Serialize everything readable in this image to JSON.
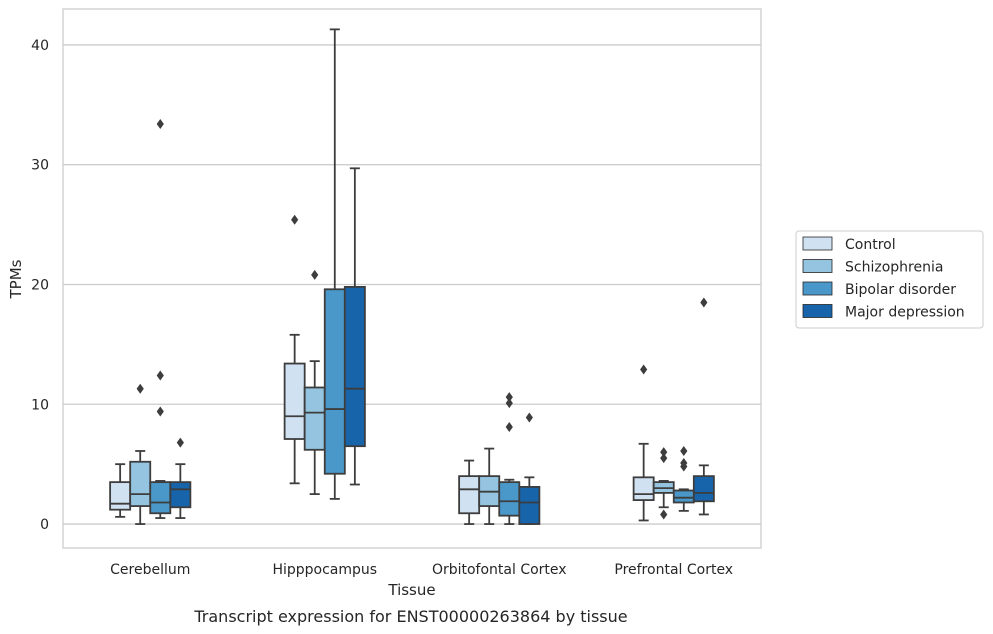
{
  "chart_data": {
    "type": "box",
    "title": "Transcript expression for ENST00000263864 by tissue",
    "xlabel": "Tissue",
    "ylabel": "TPMs",
    "ylim": [
      -2,
      43
    ],
    "yticks": [
      "0",
      "10",
      "20",
      "30",
      "40"
    ],
    "grid": "horizontal",
    "legend_position": "right",
    "categories": [
      "Cerebellum",
      "Hipppocampus",
      "Orbitofontal Cortex",
      "Prefrontal Cortex"
    ],
    "series": [
      {
        "name": "Control",
        "color": "#d0e1f2",
        "boxes": [
          {
            "whislo": 0.6,
            "q1": 1.2,
            "med": 1.7,
            "q3": 3.5,
            "whishi": 5.0,
            "fliers": []
          },
          {
            "whislo": 3.4,
            "q1": 7.1,
            "med": 9.0,
            "q3": 13.4,
            "whishi": 15.8,
            "fliers": [
              25.4
            ]
          },
          {
            "whislo": 0.0,
            "q1": 0.9,
            "med": 2.9,
            "q3": 4.0,
            "whishi": 5.3,
            "fliers": []
          },
          {
            "whislo": 0.3,
            "q1": 2.0,
            "med": 2.5,
            "q3": 3.9,
            "whishi": 6.7,
            "fliers": [
              12.9
            ]
          }
        ]
      },
      {
        "name": "Schizophrenia",
        "color": "#94c4df",
        "boxes": [
          {
            "whislo": 0.0,
            "q1": 1.5,
            "med": 2.5,
            "q3": 5.2,
            "whishi": 6.1,
            "fliers": [
              11.3
            ]
          },
          {
            "whislo": 2.5,
            "q1": 6.2,
            "med": 9.3,
            "q3": 11.4,
            "whishi": 13.6,
            "fliers": [
              20.8
            ]
          },
          {
            "whislo": 0.0,
            "q1": 1.5,
            "med": 2.7,
            "q3": 4.0,
            "whishi": 6.3,
            "fliers": []
          },
          {
            "whislo": 1.4,
            "q1": 2.6,
            "med": 3.0,
            "q3": 3.5,
            "whishi": 3.6,
            "fliers": [
              0.8,
              5.5,
              6.0
            ]
          }
        ]
      },
      {
        "name": "Bipolar disorder",
        "color": "#4a98c9",
        "boxes": [
          {
            "whislo": 0.5,
            "q1": 0.9,
            "med": 1.8,
            "q3": 3.5,
            "whishi": 3.6,
            "fliers": [
              9.4,
              12.4,
              33.4
            ]
          },
          {
            "whislo": 2.1,
            "q1": 4.2,
            "med": 9.6,
            "q3": 19.6,
            "whishi": 41.3,
            "fliers": []
          },
          {
            "whislo": 0.0,
            "q1": 0.7,
            "med": 1.9,
            "q3": 3.5,
            "whishi": 3.7,
            "fliers": [
              8.1,
              10.1,
              10.6
            ]
          },
          {
            "whislo": 1.1,
            "q1": 1.8,
            "med": 2.2,
            "q3": 2.8,
            "whishi": 2.9,
            "fliers": [
              4.8,
              5.1,
              6.1
            ]
          }
        ]
      },
      {
        "name": "Major depression",
        "color": "#1764ab",
        "boxes": [
          {
            "whislo": 0.5,
            "q1": 1.4,
            "med": 2.9,
            "q3": 3.5,
            "whishi": 5.0,
            "fliers": [
              6.8
            ]
          },
          {
            "whislo": 3.3,
            "q1": 6.5,
            "med": 11.3,
            "q3": 19.8,
            "whishi": 29.7,
            "fliers": []
          },
          {
            "whislo": 0.0,
            "q1": 0.0,
            "med": 1.8,
            "q3": 3.1,
            "whishi": 3.9,
            "fliers": [
              8.9
            ]
          },
          {
            "whislo": 0.8,
            "q1": 1.9,
            "med": 2.6,
            "q3": 4.0,
            "whishi": 4.9,
            "fliers": [
              18.5
            ]
          }
        ]
      }
    ]
  }
}
